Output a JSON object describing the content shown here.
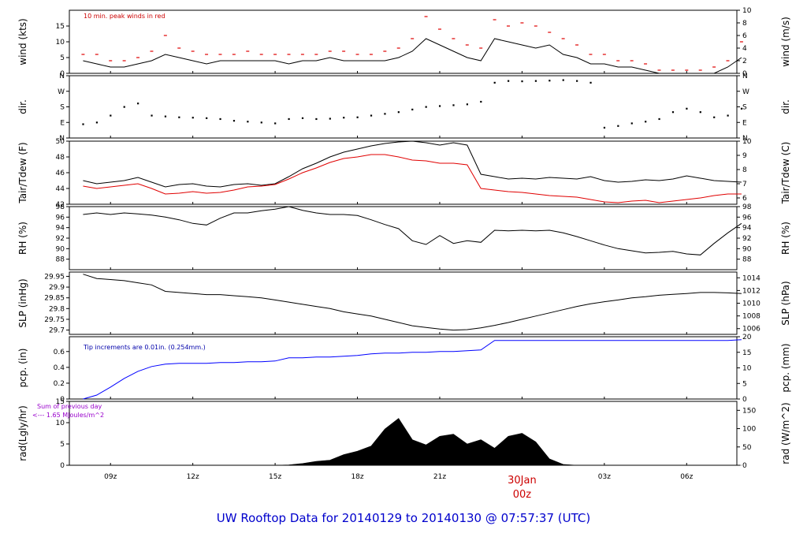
{
  "title": "UW Rooftop Data for 20140129  to  20140130 @ 07:57:37  (UTC)",
  "colors": {
    "temp": "#000000",
    "dew": "#e00000",
    "peak": "#e00000",
    "pcp": "#0000ff",
    "rad": "#000000",
    "note_red": "#cc0000",
    "note_blue": "#0000aa",
    "note_purple": "#9900cc"
  },
  "chart_data": [
    {
      "type": "line",
      "name": "wind",
      "ylabel": "wind (kts)",
      "ylabel_right": "wind (m/s)",
      "ylim": [
        0,
        20
      ],
      "yticks": [
        0,
        5,
        10,
        15
      ],
      "right_ylim": [
        0,
        10
      ],
      "right_yticks": [
        0,
        2,
        4,
        6,
        8,
        10
      ],
      "annotation": "10 min. peak winds in red",
      "x": [
        8,
        8.5,
        9,
        9.5,
        10,
        10.5,
        11,
        11.5,
        12,
        12.5,
        13,
        13.5,
        14,
        14.5,
        15,
        15.5,
        16,
        16.5,
        17,
        17.5,
        18,
        18.5,
        19,
        19.5,
        20,
        20.5,
        21,
        21.5,
        22,
        22.5,
        23,
        23.5,
        24,
        24.5,
        25,
        25.5,
        26,
        26.5,
        27,
        27.5,
        28,
        28.5,
        29,
        29.5,
        30,
        30.5,
        31,
        31.5,
        32
      ],
      "series": [
        {
          "values": [
            4,
            3,
            2,
            2,
            3,
            4,
            6,
            5,
            4,
            3,
            4,
            4,
            4,
            4,
            4,
            3,
            4,
            4,
            5,
            4,
            4,
            4,
            4,
            5,
            7,
            11,
            9,
            7,
            5,
            4,
            11,
            10,
            9,
            8,
            9,
            6,
            5,
            3,
            3,
            2,
            2,
            1,
            0,
            0,
            0,
            0,
            0,
            2,
            5
          ]
        },
        {
          "values": [
            6,
            6,
            4,
            4,
            5,
            7,
            12,
            8,
            7,
            6,
            6,
            6,
            7,
            6,
            6,
            6,
            6,
            6,
            7,
            7,
            6,
            6,
            7,
            8,
            11,
            18,
            14,
            11,
            9,
            8,
            17,
            15,
            16,
            15,
            13,
            11,
            9,
            6,
            6,
            4,
            4,
            3,
            1,
            1,
            1,
            1,
            2,
            4,
            10
          ]
        }
      ]
    },
    {
      "type": "scatter",
      "name": "dir",
      "ylabel": "dir.",
      "ylabel_right": "dir.",
      "ytick_labels": [
        "N",
        "E",
        "S",
        "W",
        "N"
      ],
      "ylim": [
        0,
        360
      ],
      "x": [
        8,
        8.5,
        9,
        9.5,
        10,
        10.5,
        11,
        11.5,
        12,
        12.5,
        13,
        13.5,
        14,
        14.5,
        15,
        15.5,
        16,
        16.5,
        17,
        17.5,
        18,
        18.5,
        19,
        19.5,
        20,
        20.5,
        21,
        21.5,
        22,
        22.5,
        23,
        23.5,
        24,
        24.5,
        25,
        25.5,
        26,
        26.5,
        27,
        27.5,
        28,
        28.5,
        29,
        29.5,
        30,
        30.5,
        31,
        31.5,
        32
      ],
      "values": [
        80,
        90,
        130,
        180,
        200,
        130,
        125,
        120,
        118,
        115,
        110,
        100,
        95,
        90,
        85,
        110,
        115,
        110,
        112,
        118,
        120,
        130,
        140,
        150,
        165,
        180,
        185,
        190,
        195,
        210,
        320,
        330,
        328,
        330,
        332,
        335,
        330,
        320,
        60,
        70,
        85,
        95,
        110,
        150,
        170,
        150,
        120,
        130,
        170
      ]
    },
    {
      "type": "line",
      "name": "temperature",
      "ylabel": "Tair/Tdew (F)",
      "ylabel_right": "Tair/Tdew (C)",
      "ylim": [
        42,
        50
      ],
      "yticks": [
        42,
        44,
        46,
        48,
        50
      ],
      "right_ylim": [
        5.556,
        10
      ],
      "right_yticks": [
        6,
        7,
        8,
        9,
        10
      ],
      "x": [
        8,
        8.5,
        9,
        9.5,
        10,
        10.5,
        11,
        11.5,
        12,
        12.5,
        13,
        13.5,
        14,
        14.5,
        15,
        15.5,
        16,
        16.5,
        17,
        17.5,
        18,
        18.5,
        19,
        19.5,
        20,
        20.5,
        21,
        21.5,
        22,
        22.5,
        23,
        23.5,
        24,
        24.5,
        25,
        25.5,
        26,
        26.5,
        27,
        27.5,
        28,
        28.5,
        29,
        29.5,
        30,
        30.5,
        31,
        31.5,
        32
      ],
      "series": [
        {
          "values": [
            45,
            44.6,
            44.8,
            45,
            45.4,
            44.8,
            44.2,
            44.5,
            44.6,
            44.3,
            44.2,
            44.5,
            44.6,
            44.4,
            44.6,
            45.5,
            46.5,
            47.2,
            48,
            48.6,
            49,
            49.4,
            49.7,
            49.9,
            50,
            49.8,
            49.5,
            49.8,
            49.5,
            45.8,
            45.5,
            45.2,
            45.3,
            45.2,
            45.4,
            45.3,
            45.2,
            45.5,
            45,
            44.8,
            44.9,
            45.1,
            45,
            45.2,
            45.6,
            45.3,
            45,
            44.9,
            44.8
          ]
        },
        {
          "values": [
            44.3,
            44,
            44.2,
            44.4,
            44.6,
            44,
            43.3,
            43.4,
            43.6,
            43.4,
            43.5,
            43.8,
            44.2,
            44.3,
            44.5,
            45.2,
            46,
            46.6,
            47.3,
            47.8,
            48,
            48.3,
            48.3,
            48,
            47.6,
            47.5,
            47.2,
            47.2,
            47,
            44,
            43.8,
            43.6,
            43.5,
            43.3,
            43.1,
            43,
            42.9,
            42.6,
            42.3,
            42.2,
            42.4,
            42.5,
            42.2,
            42.4,
            42.6,
            42.8,
            43.1,
            43.3,
            43.3
          ]
        }
      ]
    },
    {
      "type": "line",
      "name": "rh",
      "ylabel": "RH (%)",
      "ylabel_right": "RH (%)",
      "ylim": [
        86,
        98
      ],
      "yticks": [
        88,
        90,
        92,
        94,
        96,
        98
      ],
      "x": [
        8,
        8.5,
        9,
        9.5,
        10,
        10.5,
        11,
        11.5,
        12,
        12.5,
        13,
        13.5,
        14,
        14.5,
        15,
        15.5,
        16,
        16.5,
        17,
        17.5,
        18,
        18.5,
        19,
        19.5,
        20,
        20.5,
        21,
        21.5,
        22,
        22.5,
        23,
        23.5,
        24,
        24.5,
        25,
        25.5,
        26,
        26.5,
        27,
        27.5,
        28,
        28.5,
        29,
        29.5,
        30,
        30.5,
        31,
        31.5,
        32
      ],
      "values": [
        96.5,
        96.8,
        96.5,
        96.8,
        96.6,
        96.4,
        96,
        95.5,
        94.8,
        94.5,
        95.8,
        96.8,
        96.8,
        97.2,
        97.5,
        98,
        97.3,
        96.8,
        96.5,
        96.5,
        96.3,
        95.5,
        94.6,
        93.8,
        91.5,
        90.8,
        92.5,
        91,
        91.5,
        91.2,
        93.5,
        93.4,
        93.5,
        93.4,
        93.5,
        93,
        92.3,
        91.5,
        90.7,
        90,
        89.6,
        89.2,
        89.3,
        89.5,
        89,
        88.8,
        91,
        93,
        94.8
      ]
    },
    {
      "type": "line",
      "name": "pressure",
      "ylabel": "SLP (inHg)",
      "ylabel_right": "SLP (hPa)",
      "ylim": [
        29.68,
        29.97
      ],
      "yticks": [
        29.7,
        29.75,
        29.8,
        29.85,
        29.9,
        29.95
      ],
      "right_ylim": [
        1005.1,
        1014.9
      ],
      "right_yticks": [
        1006,
        1008,
        1010,
        1012,
        1014
      ],
      "x": [
        8,
        8.5,
        9,
        9.5,
        10,
        10.5,
        11,
        11.5,
        12,
        12.5,
        13,
        13.5,
        14,
        14.5,
        15,
        15.5,
        16,
        16.5,
        17,
        17.5,
        18,
        18.5,
        19,
        19.5,
        20,
        20.5,
        21,
        21.5,
        22,
        22.5,
        23,
        23.5,
        24,
        24.5,
        25,
        25.5,
        26,
        26.5,
        27,
        27.5,
        28,
        28.5,
        29,
        29.5,
        30,
        30.5,
        31,
        31.5,
        32
      ],
      "values": [
        29.96,
        29.94,
        29.935,
        29.93,
        29.92,
        29.91,
        29.88,
        29.875,
        29.87,
        29.865,
        29.865,
        29.86,
        29.855,
        29.85,
        29.84,
        29.83,
        29.82,
        29.81,
        29.8,
        29.785,
        29.775,
        29.765,
        29.75,
        29.735,
        29.72,
        29.712,
        29.705,
        29.7,
        29.702,
        29.71,
        29.722,
        29.735,
        29.75,
        29.765,
        29.78,
        29.795,
        29.81,
        29.822,
        29.832,
        29.84,
        29.85,
        29.855,
        29.862,
        29.866,
        29.87,
        29.875,
        29.875,
        29.873,
        29.87
      ]
    },
    {
      "type": "line",
      "name": "precip",
      "ylabel": "pcp. (in)",
      "ylabel_right": "pcp. (mm)",
      "ylim": [
        0,
        0.787
      ],
      "yticks": [
        0,
        0.2,
        0.4,
        0.6
      ],
      "right_ylim": [
        0,
        20
      ],
      "right_yticks": [
        0,
        5,
        10,
        15,
        20
      ],
      "annotation": "Tip increments are 0.01in. (0.254mm.)",
      "x": [
        8,
        8.5,
        9,
        9.5,
        10,
        10.5,
        11,
        11.5,
        12,
        12.5,
        13,
        13.5,
        14,
        14.5,
        15,
        15.5,
        16,
        16.5,
        17,
        17.5,
        18,
        18.5,
        19,
        19.5,
        20,
        20.5,
        21,
        21.5,
        22,
        22.5,
        23,
        23.5,
        24,
        24.5,
        25,
        25.5,
        26,
        26.5,
        27,
        27.5,
        28,
        28.5,
        29,
        29.5,
        30,
        30.5,
        31,
        31.5,
        32
      ],
      "values": [
        0,
        0.05,
        0.15,
        0.26,
        0.35,
        0.41,
        0.44,
        0.45,
        0.45,
        0.45,
        0.46,
        0.46,
        0.47,
        0.47,
        0.48,
        0.52,
        0.52,
        0.53,
        0.53,
        0.54,
        0.55,
        0.57,
        0.58,
        0.58,
        0.59,
        0.59,
        0.6,
        0.6,
        0.61,
        0.62,
        0.74,
        0.74,
        0.74,
        0.74,
        0.74,
        0.74,
        0.74,
        0.74,
        0.74,
        0.74,
        0.74,
        0.74,
        0.74,
        0.74,
        0.74,
        0.74,
        0.74,
        0.74,
        0.75
      ]
    },
    {
      "type": "area",
      "name": "radiation",
      "ylabel": "rad(Lgly/hr)",
      "ylabel_right": "rad (W/m^2)",
      "ylim": [
        0,
        15
      ],
      "yticks": [
        0,
        5,
        10,
        15
      ],
      "right_ylim": [
        0,
        174.4
      ],
      "right_yticks": [
        0,
        50,
        100,
        150
      ],
      "annotation": "Sum of previous day",
      "annotation2": "<--- 1.65 MJoules/m^2",
      "x": [
        8,
        8.5,
        9,
        9.5,
        10,
        10.5,
        11,
        11.5,
        12,
        12.5,
        13,
        13.5,
        14,
        14.5,
        15,
        15.5,
        16,
        16.5,
        17,
        17.5,
        18,
        18.5,
        19,
        19.5,
        20,
        20.5,
        21,
        21.5,
        22,
        22.5,
        23,
        23.5,
        24,
        24.5,
        25,
        25.5,
        26,
        26.5,
        27,
        27.5,
        28,
        28.5,
        29,
        29.5,
        30,
        30.5,
        31,
        31.5,
        32
      ],
      "values": [
        0,
        0,
        0,
        0,
        0,
        0,
        0,
        0,
        0,
        0,
        0,
        0,
        0,
        0,
        0,
        0.1,
        0.4,
        0.9,
        1.2,
        2.5,
        3.3,
        4.5,
        8.5,
        11,
        6,
        4.8,
        6.8,
        7.3,
        5,
        6,
        4,
        6.8,
        7.5,
        5.5,
        1.5,
        0.2,
        0,
        0,
        0,
        0,
        0,
        0,
        0,
        0,
        0,
        0,
        0,
        0,
        0
      ]
    }
  ],
  "x_axis": {
    "xlim": [
      7.5,
      31.83
    ],
    "ticks": [
      9,
      12,
      15,
      18,
      21,
      27,
      30
    ],
    "tick_labels": [
      "09z",
      "12z",
      "15z",
      "18z",
      "21z",
      "03z",
      "06z"
    ],
    "midnight_tick": 24,
    "midnight_label_1": "30Jan",
    "midnight_label_2": "00z"
  }
}
